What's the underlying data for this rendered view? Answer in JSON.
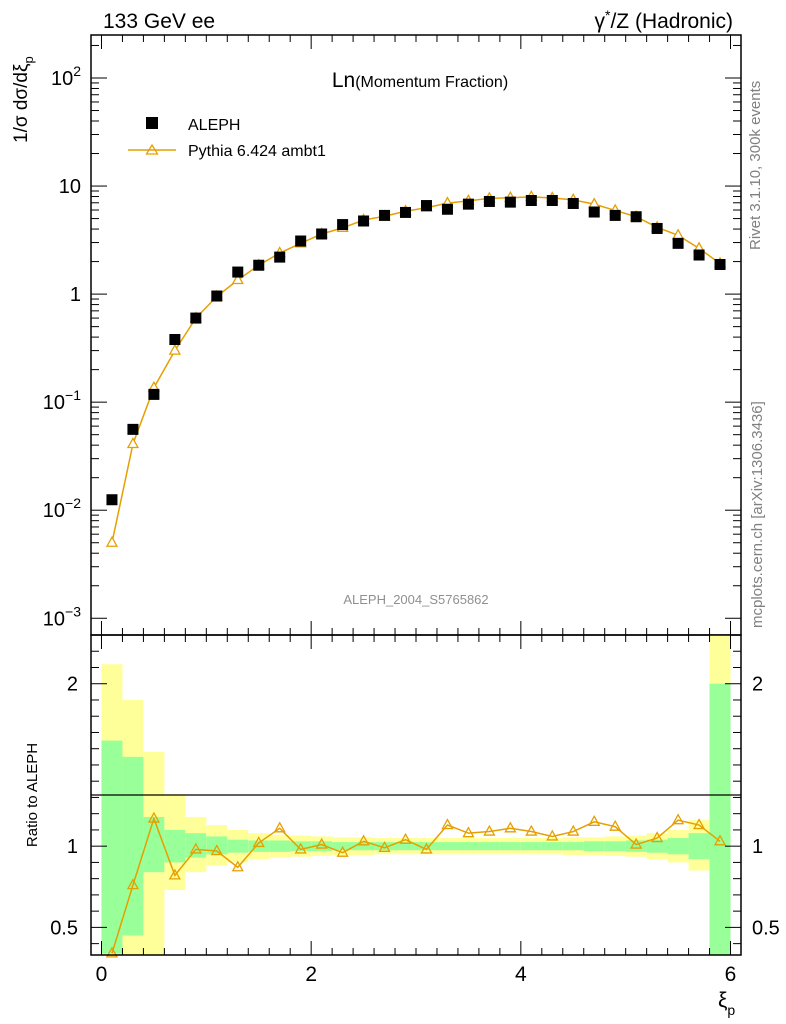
{
  "header": {
    "left": "133 GeV ee",
    "right_prefix": "γ",
    "right_sup": "*",
    "right_suffix": "/Z (Hadronic)"
  },
  "main_panel": {
    "title_main": "Ln",
    "title_sub": "(Momentum Fraction)",
    "ylabel": "1/σ dσ/dξ",
    "ylabel_sub": "p",
    "watermark": "ALEPH_2004_S5765862"
  },
  "ratio_panel": {
    "ylabel": "Ratio to ALEPH"
  },
  "xaxis": {
    "label": "ξ",
    "label_sub": "p"
  },
  "side_labels": {
    "rivet": "Rivet 3.1.10,  300k events",
    "mcplots": "mcplots.cern.ch [arXiv:1306.3436]"
  },
  "legend": {
    "data_label": "ALEPH",
    "mc_label": "Pythia 6.424 ambt1"
  },
  "colors": {
    "mc": "#e69f00",
    "band_inner": "#99ff99",
    "band_outer": "#ffff99",
    "data": "#000000"
  },
  "chart_data": {
    "type": "scatter",
    "title": "Ln(Momentum Fraction)",
    "xlabel": "ξp",
    "ylabel": "1/σ dσ/dξp",
    "xlim": [
      -0.1,
      6.1
    ],
    "ylim_main": [
      0.0007,
      250
    ],
    "yscale_main": "log",
    "ylim_ratio": [
      0.33,
      2.3
    ],
    "x_ticks": [
      0,
      2,
      4,
      6
    ],
    "y_ticks_main": [
      "10^-3",
      "10^-2",
      "10^-1",
      "1",
      "10",
      "10^2"
    ],
    "y_ticks_ratio": [
      0.5,
      1,
      2
    ],
    "x": [
      0.1,
      0.3,
      0.5,
      0.7,
      0.9,
      1.1,
      1.3,
      1.5,
      1.7,
      1.9,
      2.1,
      2.3,
      2.5,
      2.7,
      2.9,
      3.1,
      3.3,
      3.5,
      3.7,
      3.9,
      4.1,
      4.3,
      4.5,
      4.7,
      4.9,
      5.1,
      5.3,
      5.5,
      5.7,
      5.9
    ],
    "series": [
      {
        "name": "ALEPH",
        "marker": "square",
        "values": [
          0.0125,
          0.056,
          0.118,
          0.38,
          0.6,
          0.96,
          1.6,
          1.85,
          2.2,
          3.1,
          3.6,
          4.4,
          4.75,
          5.35,
          5.7,
          6.6,
          6.1,
          6.8,
          7.2,
          7.1,
          7.35,
          7.35,
          6.9,
          5.75,
          5.35,
          5.2,
          4.05,
          2.95,
          2.3,
          1.88
        ]
      },
      {
        "name": "Pythia 6.424 ambt1",
        "marker": "triangle",
        "values": [
          0.005,
          0.041,
          0.136,
          0.3,
          0.6,
          0.95,
          1.35,
          1.85,
          2.4,
          2.95,
          3.6,
          4.1,
          4.85,
          5.25,
          5.85,
          6.3,
          6.95,
          7.3,
          7.7,
          7.8,
          7.95,
          7.75,
          7.45,
          6.8,
          5.95,
          5.2,
          4.15,
          3.5,
          2.65,
          1.92
        ]
      }
    ],
    "ratio": {
      "values": [
        0.34,
        0.76,
        1.17,
        0.82,
        0.98,
        0.97,
        0.87,
        1.02,
        1.11,
        0.98,
        1.01,
        0.96,
        1.03,
        0.99,
        1.04,
        0.98,
        1.13,
        1.08,
        1.09,
        1.11,
        1.09,
        1.06,
        1.09,
        1.15,
        1.12,
        1.01,
        1.05,
        1.16,
        1.13,
        1.03
      ],
      "band_inner": [
        [
          0.34,
          1.65
        ],
        [
          0.45,
          1.55
        ],
        [
          0.84,
          1.18
        ],
        [
          0.9,
          1.1
        ],
        [
          0.93,
          1.08
        ],
        [
          0.95,
          1.06
        ],
        [
          0.96,
          1.04
        ],
        [
          0.965,
          1.035
        ],
        [
          0.965,
          1.035
        ],
        [
          0.97,
          1.03
        ],
        [
          0.97,
          1.03
        ],
        [
          0.975,
          1.025
        ],
        [
          0.975,
          1.025
        ],
        [
          0.975,
          1.025
        ],
        [
          0.975,
          1.025
        ],
        [
          0.975,
          1.025
        ],
        [
          0.975,
          1.025
        ],
        [
          0.975,
          1.025
        ],
        [
          0.975,
          1.025
        ],
        [
          0.975,
          1.025
        ],
        [
          0.975,
          1.025
        ],
        [
          0.975,
          1.025
        ],
        [
          0.975,
          1.025
        ],
        [
          0.97,
          1.03
        ],
        [
          0.97,
          1.03
        ],
        [
          0.965,
          1.035
        ],
        [
          0.96,
          1.04
        ],
        [
          0.95,
          1.05
        ],
        [
          0.92,
          1.08
        ],
        [
          0.33,
          2.0
        ]
      ],
      "band_outer": [
        [
          0.33,
          2.12
        ],
        [
          0.33,
          1.9
        ],
        [
          0.33,
          1.58
        ],
        [
          0.73,
          1.32
        ],
        [
          0.84,
          1.18
        ],
        [
          0.88,
          1.13
        ],
        [
          0.9,
          1.1
        ],
        [
          0.92,
          1.08
        ],
        [
          0.93,
          1.07
        ],
        [
          0.935,
          1.065
        ],
        [
          0.94,
          1.06
        ],
        [
          0.945,
          1.055
        ],
        [
          0.945,
          1.055
        ],
        [
          0.95,
          1.05
        ],
        [
          0.95,
          1.05
        ],
        [
          0.95,
          1.05
        ],
        [
          0.95,
          1.05
        ],
        [
          0.95,
          1.05
        ],
        [
          0.95,
          1.05
        ],
        [
          0.95,
          1.05
        ],
        [
          0.95,
          1.05
        ],
        [
          0.95,
          1.05
        ],
        [
          0.945,
          1.055
        ],
        [
          0.945,
          1.055
        ],
        [
          0.94,
          1.06
        ],
        [
          0.935,
          1.065
        ],
        [
          0.92,
          1.08
        ],
        [
          0.9,
          1.1
        ],
        [
          0.85,
          1.16
        ],
        [
          0.33,
          2.3
        ]
      ]
    }
  }
}
